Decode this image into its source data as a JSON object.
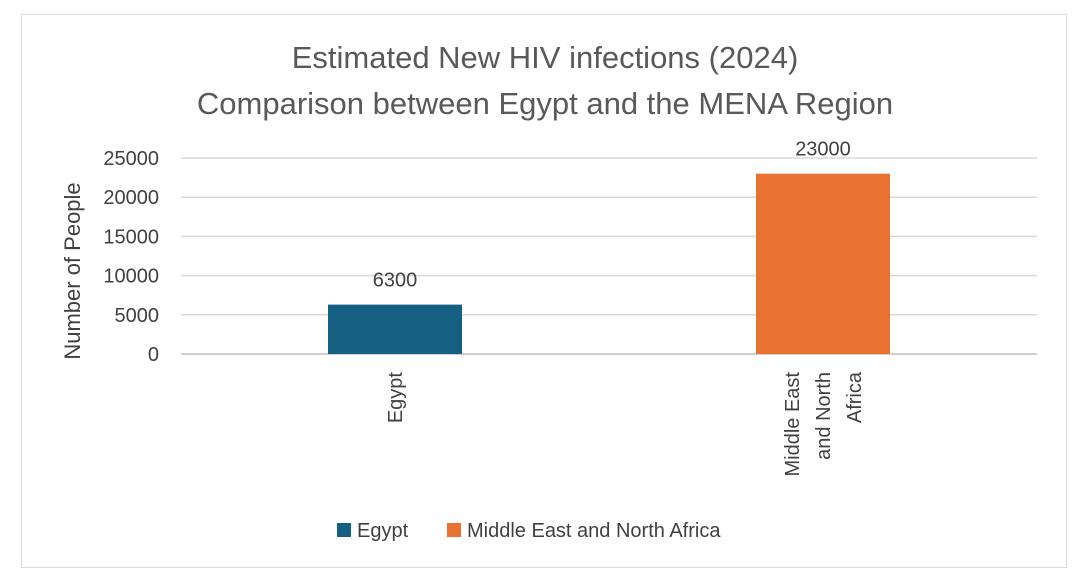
{
  "chart_data": {
    "type": "bar",
    "title": [
      "Estimated New HIV infections (2024)",
      "Comparison between Egypt and the MENA Region"
    ],
    "ylabel": "Number of People",
    "xlabel": "",
    "ylim": [
      0,
      25000
    ],
    "yticks": [
      0,
      5000,
      10000,
      15000,
      20000,
      25000
    ],
    "categories": [
      {
        "lines": [
          "Egypt"
        ]
      },
      {
        "lines": [
          "Middle East",
          "and North",
          "Africa"
        ]
      }
    ],
    "values": [
      6300,
      23000
    ],
    "data_labels": [
      "6300",
      "23000"
    ],
    "colors": [
      "#156082",
      "#E97132"
    ],
    "grid": true,
    "legend": {
      "placement": "bottom",
      "entries": [
        {
          "name": "Egypt",
          "color": "#156082"
        },
        {
          "name": "Middle East and North Africa",
          "color": "#E97132"
        }
      ]
    }
  }
}
